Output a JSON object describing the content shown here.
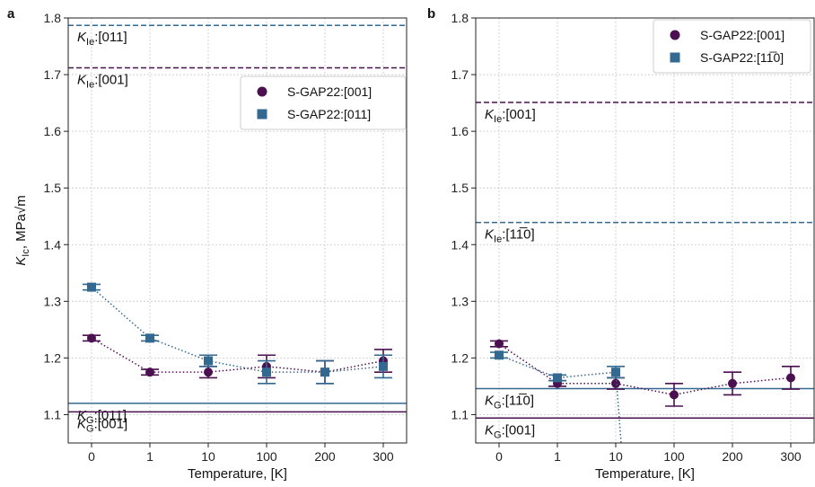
{
  "chart_data": [
    {
      "panel": "a",
      "type": "line",
      "xlabel": "Temperature, [K]",
      "ylabel": "K_Ic, MPa√m",
      "categories": [
        "0",
        "1",
        "10",
        "100",
        "200",
        "300"
      ],
      "yticks": [
        "1.1",
        "1.2",
        "1.3",
        "1.4",
        "1.5",
        "1.6",
        "1.7",
        "1.8"
      ],
      "ylim": [
        1.05,
        1.8
      ],
      "grid": true,
      "legend_position": "upper-right",
      "colors": {
        "s001": "#4a1050",
        "s011": "#336991"
      },
      "series": [
        {
          "name": "S-GAP22:[001]",
          "marker": "circle",
          "color": "#4a1050",
          "values": [
            1.235,
            1.175,
            1.175,
            1.185,
            1.175,
            1.195
          ],
          "errors": [
            0.005,
            0.005,
            0.01,
            0.02,
            0.02,
            0.02
          ]
        },
        {
          "name": "S-GAP22:[011]",
          "marker": "square",
          "color": "#336991",
          "values": [
            1.325,
            1.235,
            1.195,
            1.175,
            1.175,
            1.185
          ],
          "errors": [
            0.005,
            0.005,
            0.01,
            0.02,
            0.02,
            0.02
          ]
        }
      ],
      "reference_lines": [
        {
          "value": 1.787,
          "style": "dashed",
          "color": "#336991",
          "main": "K",
          "sub": "Ie",
          "rest": ":[011]"
        },
        {
          "value": 1.712,
          "style": "dashed",
          "color": "#4a1050",
          "main": "K",
          "sub": "Ie",
          "rest": ":[001]"
        },
        {
          "value": 1.12,
          "style": "solid",
          "color": "#336991",
          "main": "K",
          "sub": "G",
          "rest": ":[011]"
        },
        {
          "value": 1.105,
          "style": "solid",
          "color": "#4a1050",
          "main": "K",
          "sub": "G",
          "rest": ":[001]"
        }
      ]
    },
    {
      "panel": "b",
      "type": "line",
      "xlabel": "Temperature, [K]",
      "ylabel": "",
      "categories": [
        "0",
        "1",
        "10",
        "100",
        "200",
        "300"
      ],
      "yticks": [
        "1.1",
        "1.2",
        "1.3",
        "1.4",
        "1.5",
        "1.6",
        "1.7",
        "1.8"
      ],
      "ylim": [
        1.05,
        1.8
      ],
      "grid": true,
      "legend_position": "upper-right",
      "colors": {
        "s001": "#4a1050",
        "s110": "#336991"
      },
      "series": [
        {
          "name": "S-GAP22:[001]",
          "marker": "circle",
          "color": "#4a1050",
          "values": [
            1.225,
            1.155,
            1.155,
            1.135,
            1.155,
            1.165
          ],
          "errors": [
            0.005,
            0.005,
            0.01,
            0.02,
            0.02,
            0.02
          ]
        },
        {
          "name": "S-GAP22:[11̅0]",
          "marker": "square",
          "color": "#336991",
          "values": [
            1.205,
            1.165,
            1.175,
            null,
            null,
            null
          ],
          "errors": [
            0.005,
            0.005,
            0.01,
            null,
            null,
            null
          ],
          "note_drop_below_axis": true
        }
      ],
      "reference_lines": [
        {
          "value": 1.651,
          "style": "dashed",
          "color": "#4a1050",
          "main": "K",
          "sub": "Ie",
          "rest": ":[001]"
        },
        {
          "value": 1.439,
          "style": "dashed",
          "color": "#336991",
          "main": "K",
          "sub": "Ie",
          "rest": ":[11̅0]"
        },
        {
          "value": 1.146,
          "style": "solid",
          "color": "#336991",
          "main": "K",
          "sub": "G",
          "rest": ":[11̅0]"
        },
        {
          "value": 1.094,
          "style": "solid",
          "color": "#4a1050",
          "main": "K",
          "sub": "G",
          "rest": ":[001]"
        }
      ]
    }
  ]
}
